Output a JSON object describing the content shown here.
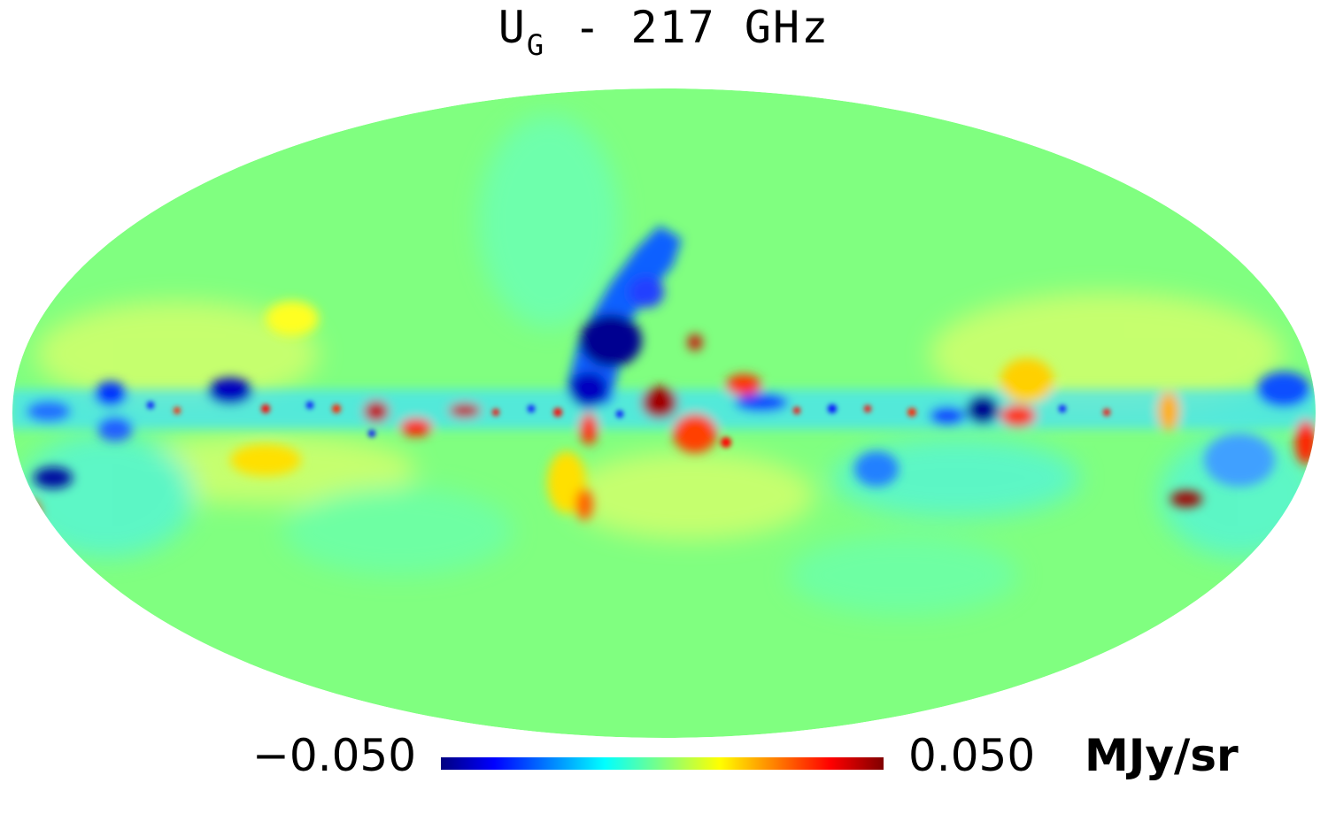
{
  "title": {
    "main": "U",
    "sub": "G",
    "rest": " - 217 GHz"
  },
  "projection": "mollweide",
  "colormap": {
    "name": "jet",
    "min_label": "−0.050",
    "max_label": "0.050",
    "unit": "MJy/sr",
    "min": -0.05,
    "max": 0.05,
    "colors": [
      "#000080",
      "#0000ff",
      "#00ffff",
      "#80ff80",
      "#ffff00",
      "#ff0000",
      "#800000"
    ]
  },
  "background_color": "#80ff80"
}
